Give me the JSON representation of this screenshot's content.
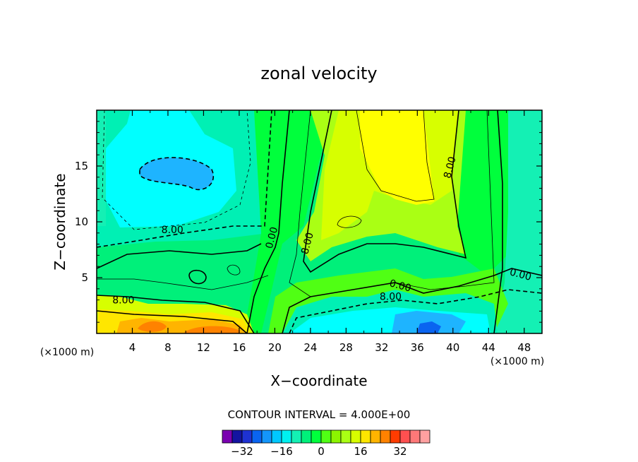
{
  "chart_data": {
    "type": "heatmap",
    "title": "zonal velocity",
    "xlabel": "X−coordinate",
    "ylabel": "Z−coordinate",
    "x_unit": "(×1000 m)",
    "x_unit_right": "(×1000 m)",
    "xlim": [
      0,
      50
    ],
    "ylim": [
      0,
      20
    ],
    "x_ticks": [
      4,
      8,
      12,
      16,
      20,
      24,
      28,
      32,
      36,
      40,
      44,
      48
    ],
    "y_ticks": [
      5,
      10,
      15
    ],
    "contour_interval_text": "CONTOUR INTERVAL = 4.000E+00",
    "contour_labels": [
      {
        "text": "8.00",
        "x": 8.5,
        "z": 9.0
      },
      {
        "text": "8.00",
        "x": 24.0,
        "z": 8.0
      },
      {
        "text": "8.00",
        "x": 40.0,
        "z": 14.8
      },
      {
        "text": "0.00",
        "x": 20.0,
        "z": 8.5
      },
      {
        "text": "0.00",
        "x": 34.0,
        "z": 4.0
      },
      {
        "text": "0.00",
        "x": 47.5,
        "z": 5.0
      },
      {
        "text": "8.00",
        "x": 33.0,
        "z": 3.0
      },
      {
        "text": "8.00",
        "x": 3.0,
        "z": 2.7
      }
    ],
    "colorbar": {
      "levels": [
        -36,
        -32,
        -28,
        -24,
        -20,
        -16,
        -12,
        -8,
        -4,
        0,
        4,
        8,
        12,
        16,
        20,
        24,
        28,
        32,
        36,
        40
      ],
      "colors": [
        "#7a00b0",
        "#1414a0",
        "#1e32d2",
        "#0a64f0",
        "#1496fa",
        "#00c8ff",
        "#00f0f0",
        "#14f0b4",
        "#00f07a",
        "#00ff3c",
        "#50ff14",
        "#8cf500",
        "#aaff14",
        "#d7ff00",
        "#ffe600",
        "#ffb400",
        "#ff8200",
        "#ff3c00",
        "#ff5050",
        "#ff7878",
        "#ffa0a0"
      ],
      "tick_labels": [
        {
          "text": "−32",
          "value": -32
        },
        {
          "text": "−16",
          "value": -16
        },
        {
          "text": "0",
          "value": 0
        },
        {
          "text": "16",
          "value": 16
        },
        {
          "text": "32",
          "value": 32
        }
      ]
    }
  }
}
